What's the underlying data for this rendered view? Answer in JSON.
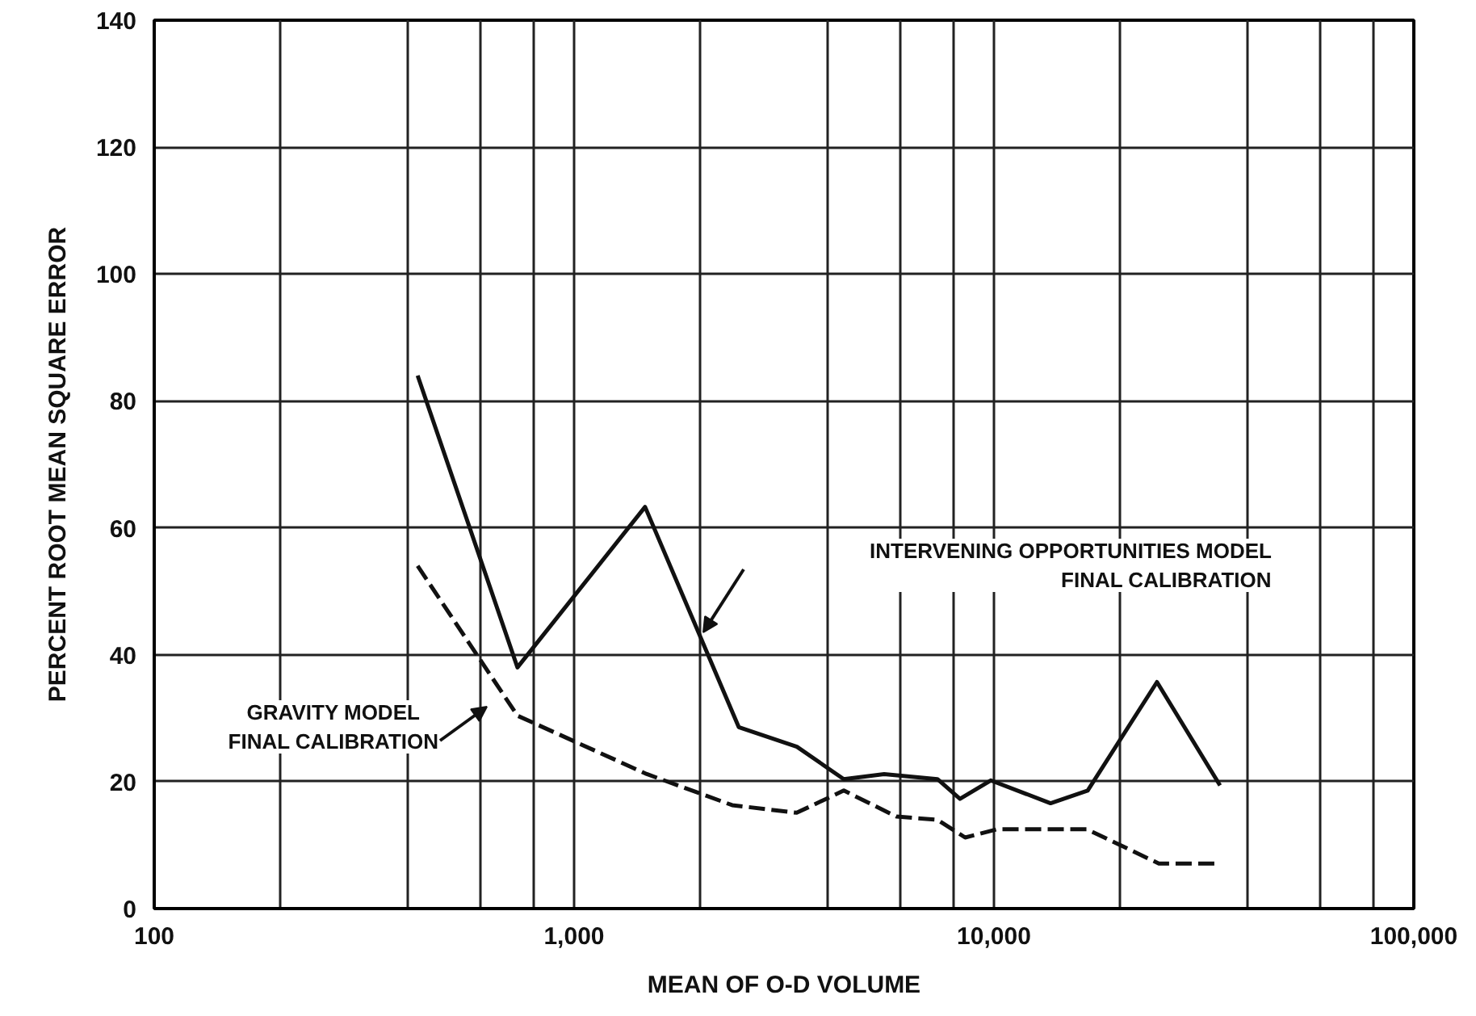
{
  "chart_data": {
    "type": "line",
    "xlabel": "MEAN OF O-D VOLUME",
    "ylabel": "PERCENT ROOT MEAN SQUARE ERROR",
    "log": "x",
    "grid": true,
    "xlim": [
      100,
      100000
    ],
    "xticks": [
      100,
      {
        "value": 200,
        "label": null
      },
      {
        "value": 400,
        "label": null
      },
      {
        "value": 600,
        "label": null
      },
      {
        "value": 800,
        "label": null
      },
      {
        "value": 1000,
        "label": "1,000"
      },
      {
        "value": 2000,
        "label": null
      },
      {
        "value": 4000,
        "label": null
      },
      {
        "value": 6000,
        "label": null
      },
      {
        "value": 8000,
        "label": null
      },
      {
        "value": 10000,
        "label": "10,000"
      },
      {
        "value": 20000,
        "label": null
      },
      {
        "value": 40000,
        "label": null
      },
      {
        "value": 60000,
        "label": null
      },
      {
        "value": 80000,
        "label": null
      },
      {
        "value": 100000,
        "label": "100,000"
      }
    ],
    "ylim": [
      0,
      140
    ],
    "yticks": [
      0,
      20,
      40,
      60,
      80,
      100,
      120,
      140
    ],
    "series": [
      {
        "color": "#111111",
        "line_style": "solid",
        "x": [
          424,
          733,
          1476,
          2467,
          3394,
          4389,
          5476,
          7335,
          8300,
          9826,
          13640,
          16720,
          24450,
          34550
        ],
        "values": [
          84,
          38,
          63.3,
          28.6,
          25.5,
          20.4,
          21.2,
          20.4,
          17.3,
          20.2,
          16.6,
          18.6,
          35.7,
          19.4
        ]
      },
      {
        "color": "#111111",
        "line_style": "dashed",
        "x": [
          424,
          733,
          1490,
          2380,
          3390,
          4389,
          5860,
          7335,
          8540,
          10160,
          16650,
          24700,
          34550
        ],
        "values": [
          54,
          30.4,
          21.2,
          16.3,
          15.1,
          18.6,
          14.5,
          14.0,
          11.2,
          12.5,
          12.5,
          7.1,
          7.1
        ]
      }
    ],
    "annotations": [
      "INTERVENING OPPORTUNITIES MODEL\nFINAL CALIBRATION",
      "GRAVITY MODEL\nFINAL CALIBRATION"
    ]
  }
}
